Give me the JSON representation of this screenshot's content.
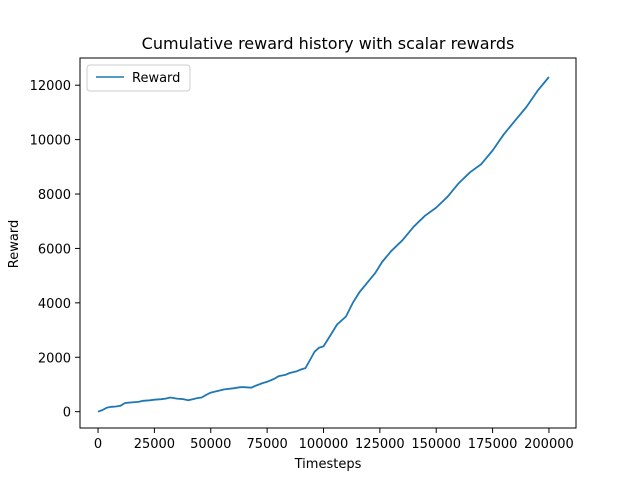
{
  "chart_data": {
    "type": "line",
    "title": "Cumulative reward history with scalar rewards",
    "xlabel": "Timesteps",
    "ylabel": "Reward",
    "xlim": [
      -8000,
      212000
    ],
    "ylim": [
      -600,
      13000
    ],
    "xticks": [
      0,
      25000,
      50000,
      75000,
      100000,
      125000,
      150000,
      175000,
      200000
    ],
    "xtick_labels": [
      "0",
      "25000",
      "50000",
      "75000",
      "100000",
      "125000",
      "150000",
      "175000",
      "200000"
    ],
    "yticks": [
      0,
      2000,
      4000,
      6000,
      8000,
      10000,
      12000
    ],
    "ytick_labels": [
      "0",
      "2000",
      "4000",
      "6000",
      "8000",
      "10000",
      "12000"
    ],
    "grid": false,
    "legend_position": "top-left",
    "series": [
      {
        "name": "Reward",
        "color": "#1f77b4",
        "x": [
          0,
          2000,
          4000,
          6000,
          8000,
          10000,
          12000,
          15000,
          18000,
          20000,
          23000,
          25000,
          28000,
          30000,
          32000,
          35000,
          38000,
          40000,
          42000,
          44000,
          46000,
          48000,
          50000,
          53000,
          56000,
          60000,
          63000,
          65000,
          68000,
          70000,
          73000,
          75000,
          78000,
          80000,
          83000,
          85000,
          88000,
          90000,
          92000,
          94000,
          96000,
          98000,
          100000,
          103000,
          106000,
          110000,
          113000,
          116000,
          120000,
          123000,
          126000,
          130000,
          135000,
          140000,
          145000,
          150000,
          155000,
          160000,
          165000,
          170000,
          175000,
          180000,
          185000,
          190000,
          195000,
          198000,
          200000
        ],
        "y": [
          0,
          60,
          150,
          180,
          190,
          220,
          320,
          340,
          360,
          400,
          420,
          440,
          460,
          480,
          520,
          480,
          460,
          420,
          460,
          500,
          520,
          620,
          700,
          760,
          820,
          860,
          900,
          900,
          880,
          960,
          1050,
          1100,
          1200,
          1300,
          1350,
          1420,
          1480,
          1550,
          1600,
          1900,
          2200,
          2350,
          2400,
          2800,
          3200,
          3500,
          4000,
          4400,
          4800,
          5100,
          5500,
          5900,
          6300,
          6800,
          7200,
          7500,
          7900,
          8400,
          8800,
          9100,
          9600,
          10200,
          10700,
          11200,
          11800,
          12100,
          12300
        ]
      }
    ]
  }
}
